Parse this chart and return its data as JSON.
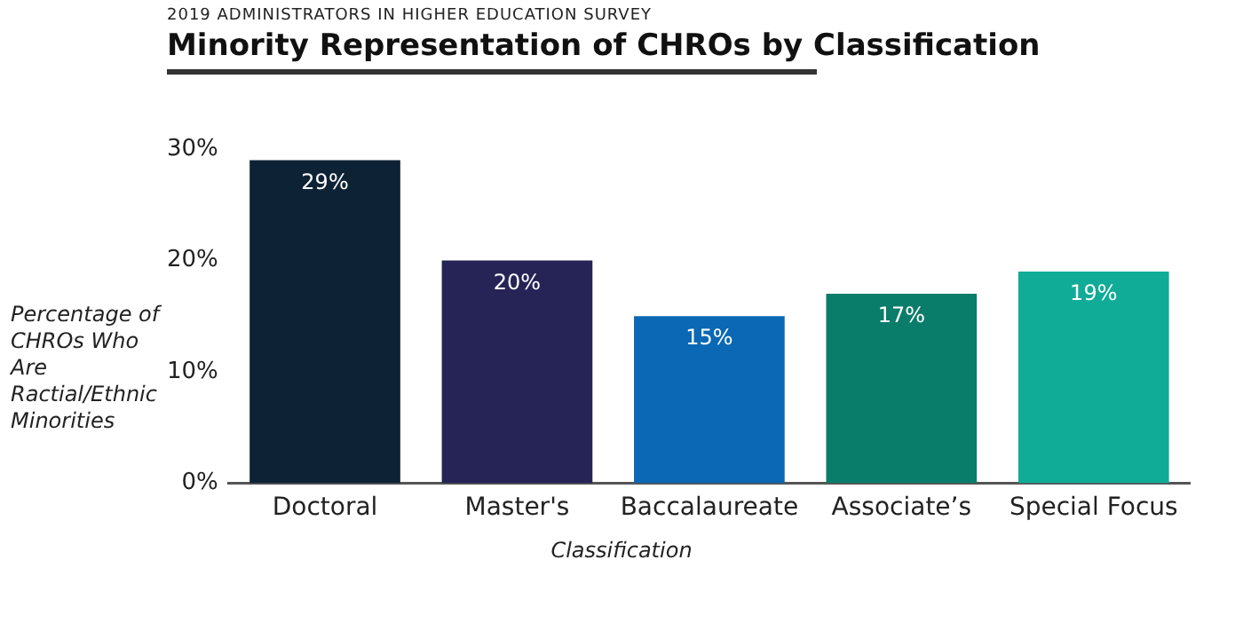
{
  "chart_data": {
    "type": "bar",
    "subtitle": "2019 ADMINISTRATORS IN HIGHER EDUCATION SURVEY",
    "title": "Minority Representation of CHROs by Classification",
    "ylabel": "Percentage of CHROs Who Are Ractial/Ethnic Minorities",
    "xlabel": "Classification",
    "categories": [
      "Doctoral",
      "Master's",
      "Baccalaureate",
      "Associate’s",
      "Special Focus"
    ],
    "values": [
      29,
      20,
      15,
      17,
      19
    ],
    "colors": [
      "#0e2236",
      "#262456",
      "#0a68b4",
      "#0a7c6a",
      "#10ac97"
    ],
    "value_labels": [
      "29%",
      "20%",
      "15%",
      "17%",
      "19%"
    ],
    "ylim": [
      0,
      30
    ],
    "yticks": [
      {
        "value": 0,
        "label": "0%"
      },
      {
        "value": 10,
        "label": "10%"
      },
      {
        "value": 20,
        "label": "20%"
      },
      {
        "value": 30,
        "label": "30%"
      }
    ],
    "grid": false,
    "legend": false
  }
}
